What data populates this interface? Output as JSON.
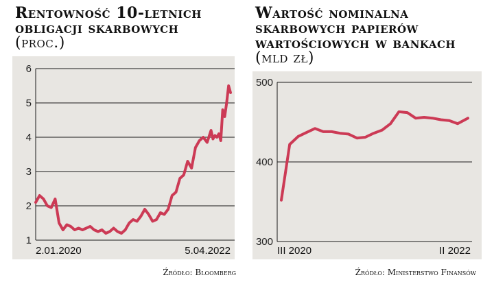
{
  "colors": {
    "line": "#cc3a55",
    "panel": "#e8e6e2",
    "grid": "#1a1a1a"
  },
  "chart_data": [
    {
      "type": "line",
      "title": "Rentowność 10-letnich obligacji skarbowych",
      "title_lines": [
        "Rentowność 10-letnich",
        "obligacji skarbowych"
      ],
      "unit": "(proc.)",
      "source": "Źródło: Bloomberg",
      "ylim": [
        1,
        6
      ],
      "yticks": [
        "1",
        "2",
        "3",
        "4",
        "5",
        "6"
      ],
      "xticks": [
        "2.01.2020",
        "5.04.2022"
      ],
      "grid": true,
      "series": [
        {
          "x": [
            0,
            0.02,
            0.04,
            0.06,
            0.08,
            0.1,
            0.12,
            0.14,
            0.16,
            0.18,
            0.2,
            0.22,
            0.24,
            0.26,
            0.28,
            0.3,
            0.32,
            0.34,
            0.36,
            0.38,
            0.4,
            0.42,
            0.44,
            0.46,
            0.48,
            0.5,
            0.52,
            0.54,
            0.56,
            0.58,
            0.6,
            0.62,
            0.64,
            0.66,
            0.68,
            0.7,
            0.72,
            0.74,
            0.76,
            0.78,
            0.8,
            0.82,
            0.84,
            0.86,
            0.88,
            0.9,
            0.91,
            0.92,
            0.93,
            0.94,
            0.95,
            0.96,
            0.97,
            0.98,
            0.99,
            1.0
          ],
          "values": [
            2.1,
            2.3,
            2.2,
            2.0,
            1.95,
            2.2,
            1.5,
            1.3,
            1.45,
            1.4,
            1.3,
            1.35,
            1.3,
            1.35,
            1.4,
            1.3,
            1.25,
            1.3,
            1.2,
            1.25,
            1.35,
            1.25,
            1.2,
            1.3,
            1.5,
            1.6,
            1.55,
            1.7,
            1.9,
            1.75,
            1.55,
            1.6,
            1.8,
            1.75,
            1.9,
            2.3,
            2.4,
            2.8,
            2.9,
            3.3,
            3.1,
            3.7,
            3.9,
            4.0,
            3.85,
            4.2,
            3.95,
            4.05,
            4.0,
            4.1,
            3.9,
            4.8,
            4.6,
            5.0,
            5.5,
            5.3
          ]
        }
      ]
    },
    {
      "type": "line",
      "title": "Wartość nominalna skarbowych papierów wartościowych w bankach",
      "title_lines": [
        "Wartość nominalna",
        "skarbowych papierów",
        "wartościowych w bankach"
      ],
      "unit": "(mld zł)",
      "source": "Źródło: Ministerstwo Finansów",
      "ylim": [
        300,
        500
      ],
      "yticks": [
        "300",
        "400",
        "500"
      ],
      "xticks": [
        "III 2020",
        "II 2022"
      ],
      "grid": true,
      "series": [
        {
          "x": [
            0,
            0.045,
            0.09,
            0.135,
            0.18,
            0.225,
            0.27,
            0.315,
            0.36,
            0.405,
            0.45,
            0.495,
            0.54,
            0.585,
            0.63,
            0.675,
            0.72,
            0.765,
            0.81,
            0.855,
            0.9,
            0.945,
            1.0
          ],
          "values": [
            352,
            422,
            432,
            437,
            442,
            438,
            438,
            436,
            435,
            430,
            431,
            436,
            440,
            448,
            463,
            462,
            455,
            456,
            455,
            453,
            452,
            448,
            455
          ]
        }
      ]
    }
  ]
}
